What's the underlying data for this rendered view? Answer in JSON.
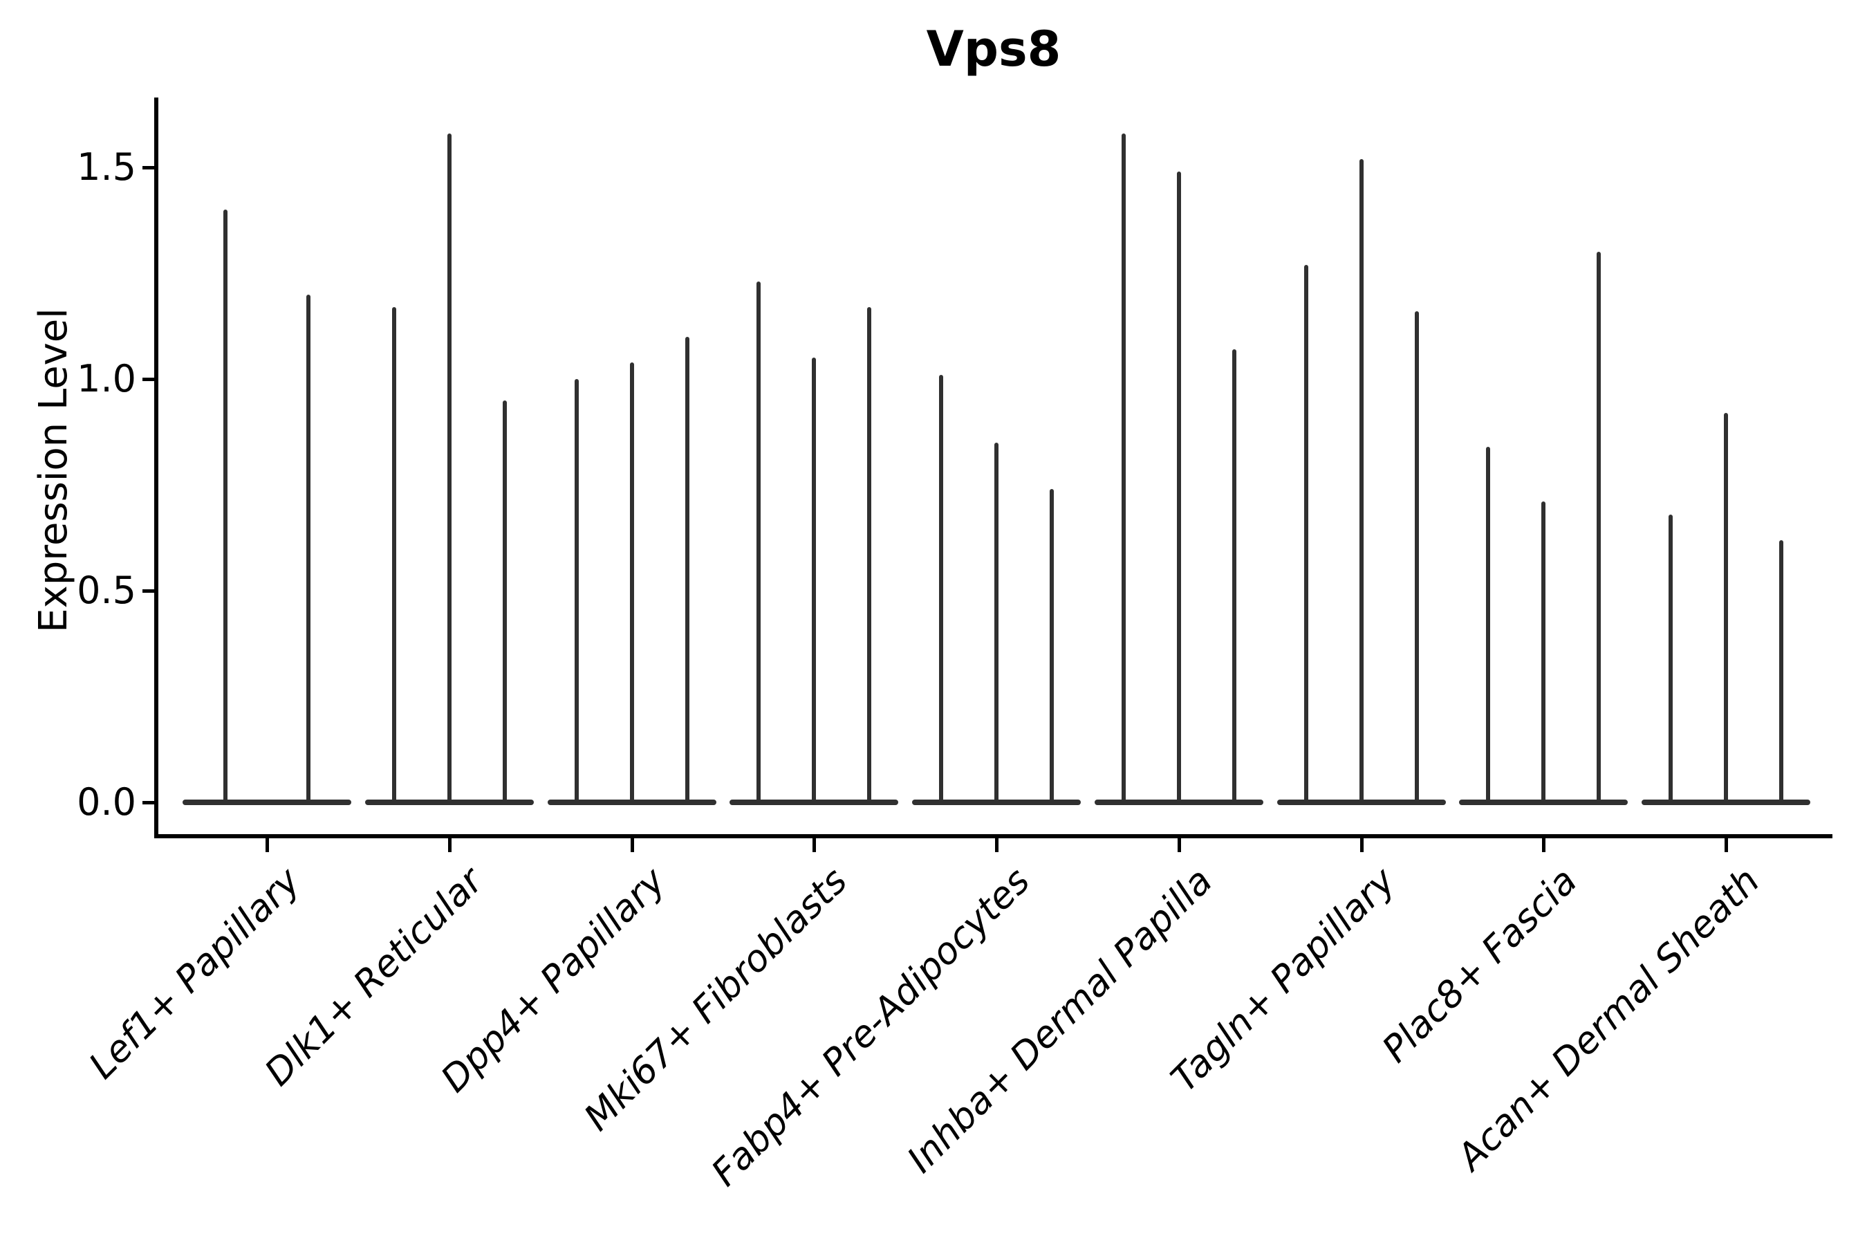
{
  "figure": {
    "title": "Vps8"
  },
  "axes": {
    "ylabel": "Expression Level",
    "ytick_labels": [
      "0.0",
      "0.5",
      "1.0",
      "1.5"
    ]
  },
  "chart_data": {
    "type": "violin",
    "title": "Vps8",
    "xlabel": "",
    "ylabel": "Expression Level",
    "ylim": [
      -0.07,
      1.66
    ],
    "yticks": [
      0.0,
      0.5,
      1.0,
      1.5
    ],
    "ytick_labels": [
      "0.0",
      "0.5",
      "1.0",
      "1.5"
    ],
    "grid": false,
    "legend_position": "none",
    "violin_color": "#303030",
    "axis_color": "#000000",
    "note": "Narrow spike-shaped violins (most mass at 0) showing max expression per violin; 2 violins in first category, 3 in all others; category labels rotated 45 degrees, italic.",
    "categories": [
      "Lef1+ Papillary",
      "Dlk1+ Reticular",
      "Dpp4+ Papillary",
      "Mki67+ Fibroblasts",
      "Fabp4+ Pre-Adipocytes",
      "Inhba+ Dermal Papilla",
      "Tagln+ Papillary",
      "Plac8+ Fascia",
      "Acan+ Dermal Sheath"
    ],
    "groups": [
      {
        "category": "Lef1+ Papillary",
        "violin_maxima": [
          1.4,
          1.2
        ]
      },
      {
        "category": "Dlk1+ Reticular",
        "violin_maxima": [
          1.17,
          1.58,
          0.95
        ]
      },
      {
        "category": "Dpp4+ Papillary",
        "violin_maxima": [
          1.0,
          1.04,
          1.1
        ]
      },
      {
        "category": "Mki67+ Fibroblasts",
        "violin_maxima": [
          1.23,
          1.05,
          1.17
        ]
      },
      {
        "category": "Fabp4+ Pre-Adipocytes",
        "violin_maxima": [
          1.01,
          0.85,
          0.74
        ]
      },
      {
        "category": "Inhba+ Dermal Papilla",
        "violin_maxima": [
          1.58,
          1.49,
          1.07
        ]
      },
      {
        "category": "Tagln+ Papillary",
        "violin_maxima": [
          1.27,
          1.52,
          1.16
        ]
      },
      {
        "category": "Plac8+ Fascia",
        "violin_maxima": [
          0.84,
          0.71,
          1.3
        ]
      },
      {
        "category": "Acan+ Dermal Sheath",
        "violin_maxima": [
          0.68,
          0.92,
          0.62
        ]
      }
    ]
  }
}
